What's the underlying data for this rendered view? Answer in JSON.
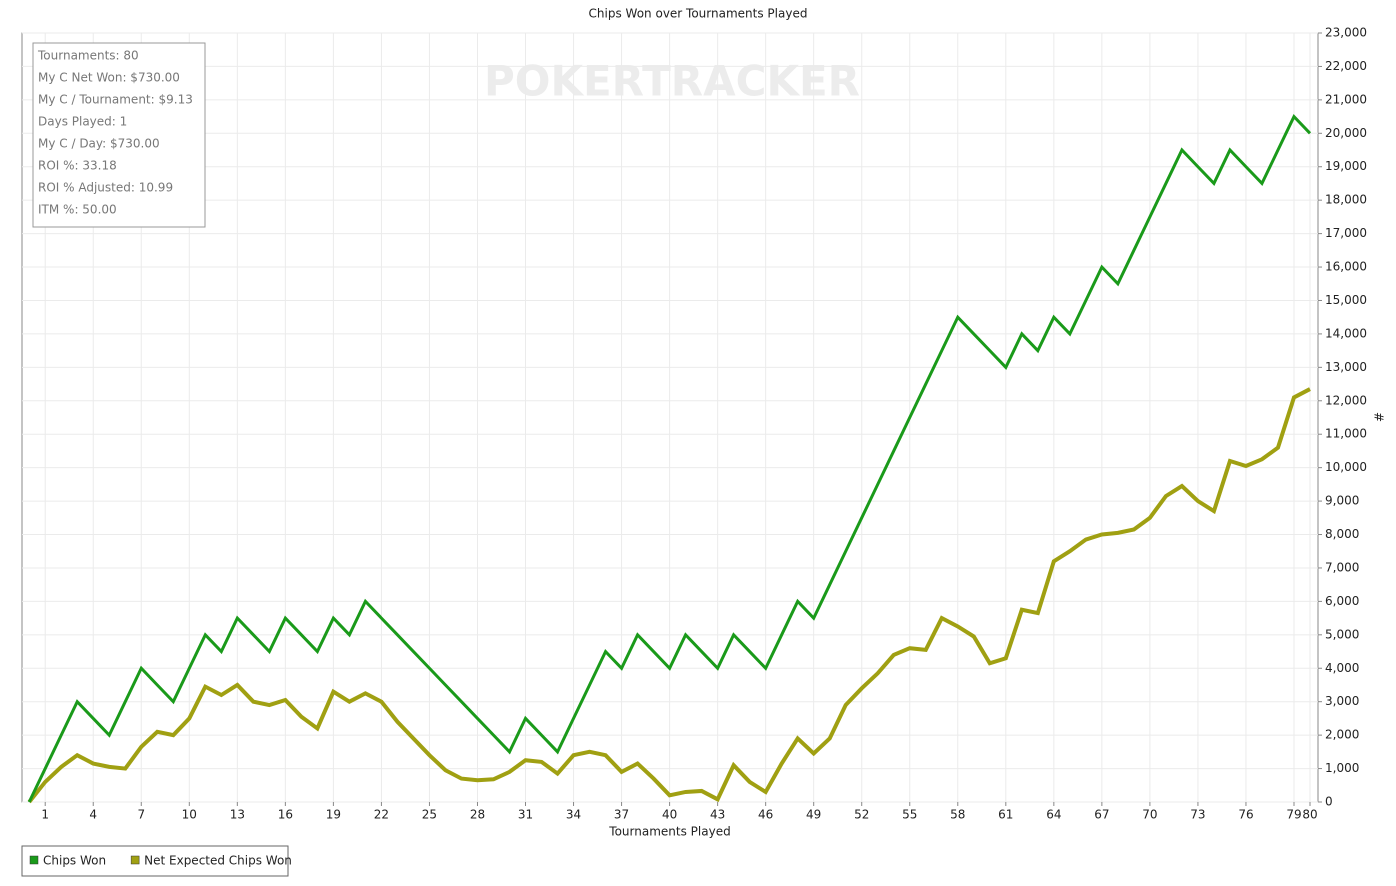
{
  "chart_data": {
    "type": "line",
    "title": "Chips Won over Tournaments Played",
    "x_label": "Tournaments Played",
    "y_label": "#",
    "watermark": "POKERTRACKER",
    "stats_box": [
      "Tournaments: 80",
      "My C Net Won: $730.00",
      "My C / Tournament: $9.13",
      "Days Played: 1",
      "My C / Day: $730.00",
      "ROI %: 33.18",
      "ROI % Adjusted: 10.99",
      "ITM %: 50.00"
    ],
    "x": [
      0,
      1,
      2,
      3,
      4,
      5,
      6,
      7,
      8,
      9,
      10,
      11,
      12,
      13,
      14,
      15,
      16,
      17,
      18,
      19,
      20,
      21,
      22,
      23,
      24,
      25,
      26,
      27,
      28,
      29,
      30,
      31,
      32,
      33,
      34,
      35,
      36,
      37,
      38,
      39,
      40,
      41,
      42,
      43,
      44,
      45,
      46,
      47,
      48,
      49,
      50,
      51,
      52,
      53,
      54,
      55,
      56,
      57,
      58,
      59,
      60,
      61,
      62,
      63,
      64,
      65,
      66,
      67,
      68,
      69,
      70,
      71,
      72,
      73,
      74,
      75,
      76,
      77,
      78,
      79,
      80
    ],
    "series": [
      {
        "name": "Chips Won",
        "color": "#1a9a1a",
        "values": [
          0,
          1000,
          2000,
          3000,
          2500,
          2000,
          3000,
          4000,
          3500,
          3000,
          4000,
          5000,
          4500,
          5500,
          5000,
          4500,
          5500,
          5000,
          4500,
          5500,
          5000,
          6000,
          5500,
          5000,
          4500,
          4000,
          3500,
          3000,
          2500,
          2000,
          1500,
          2500,
          2000,
          1500,
          2500,
          3500,
          4500,
          4000,
          5000,
          4500,
          4000,
          5000,
          4500,
          4000,
          5000,
          4500,
          4000,
          5000,
          6000,
          5500,
          6500,
          7500,
          8500,
          9500,
          10500,
          11500,
          12500,
          13500,
          14500,
          14000,
          13500,
          13000,
          14000,
          13500,
          14500,
          14000,
          15000,
          16000,
          15500,
          16500,
          17500,
          18500,
          19500,
          19000,
          18500,
          19500,
          19000,
          18500,
          19500,
          20500,
          20000
        ]
      },
      {
        "name": "Net Expected Chips Won",
        "color": "#a0a012",
        "values": [
          0,
          600,
          1050,
          1400,
          1150,
          1050,
          1000,
          1650,
          2100,
          2000,
          2500,
          3450,
          3200,
          3500,
          3000,
          2900,
          3050,
          2550,
          2200,
          3300,
          3000,
          3250,
          3000,
          2400,
          1900,
          1400,
          950,
          700,
          650,
          680,
          900,
          1250,
          1200,
          850,
          1400,
          1500,
          1400,
          900,
          1150,
          700,
          200,
          300,
          330,
          80,
          1100,
          600,
          300,
          1150,
          1900,
          1450,
          1900,
          2900,
          3400,
          3850,
          4400,
          4600,
          4550,
          5500,
          5250,
          4950,
          4150,
          4300,
          5750,
          5650,
          7200,
          7500,
          7850,
          8000,
          8050,
          8150,
          8500,
          9150,
          9450,
          9000,
          8700,
          10200,
          10050,
          10250,
          10600,
          12100,
          12350
        ]
      }
    ],
    "xlim": [
      -0.45,
      80.5
    ],
    "xticks": [
      1,
      4,
      7,
      10,
      13,
      16,
      19,
      22,
      25,
      28,
      31,
      34,
      37,
      40,
      43,
      46,
      49,
      52,
      55,
      58,
      61,
      64,
      67,
      70,
      73,
      76,
      79,
      80
    ],
    "ylim": [
      0,
      23000
    ],
    "yticks": [
      0,
      {
        "value": 1000,
        "label": "1,000"
      },
      {
        "value": 2000,
        "label": "2,000"
      },
      {
        "value": 3000,
        "label": "3,000"
      },
      {
        "value": 4000,
        "label": "4,000"
      },
      {
        "value": 5000,
        "label": "5,000"
      },
      {
        "value": 6000,
        "label": "6,000"
      },
      {
        "value": 7000,
        "label": "7,000"
      },
      {
        "value": 8000,
        "label": "8,000"
      },
      {
        "value": 9000,
        "label": "9,000"
      },
      {
        "value": 10000,
        "label": "10,000"
      },
      {
        "value": 11000,
        "label": "11,000"
      },
      {
        "value": 12000,
        "label": "12,000"
      },
      {
        "value": 13000,
        "label": "13,000"
      },
      {
        "value": 14000,
        "label": "14,000"
      },
      {
        "value": 15000,
        "label": "15,000"
      },
      {
        "value": 16000,
        "label": "16,000"
      },
      {
        "value": 17000,
        "label": "17,000"
      },
      {
        "value": 18000,
        "label": "18,000"
      },
      {
        "value": 19000,
        "label": "19,000"
      },
      {
        "value": 20000,
        "label": "20,000"
      },
      {
        "value": 21000,
        "label": "21,000"
      },
      {
        "value": 22000,
        "label": "22,000"
      },
      {
        "value": 23000,
        "label": "23,000"
      }
    ],
    "grid": true
  }
}
